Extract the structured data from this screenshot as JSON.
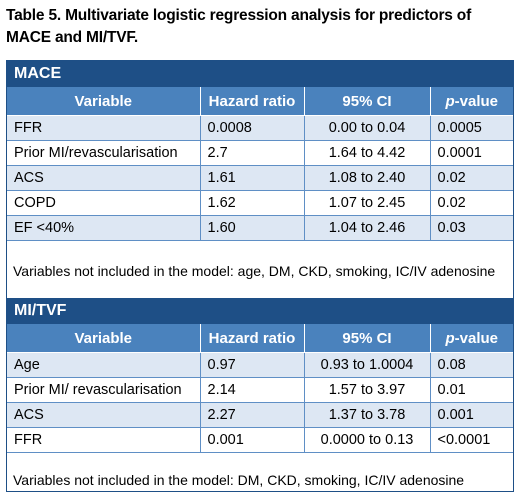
{
  "caption": "Table 5. Multivariate logistic regression analysis for predictors of MACE and MI/TVF.",
  "columns": {
    "variable": "Variable",
    "hazard_ratio": "Hazard ratio",
    "ci": "95% CI",
    "p_prefix": "p",
    "p_suffix": "-value"
  },
  "mace": {
    "title": "MACE",
    "rows": [
      {
        "variable": "FFR",
        "hr": "0.0008",
        "ci": "0.00 to 0.04",
        "p": "0.0005"
      },
      {
        "variable": "Prior MI/revascularisation",
        "hr": "2.7",
        "ci": "1.64 to 4.42",
        "p": "0.0001"
      },
      {
        "variable": "ACS",
        "hr": "1.61",
        "ci": "1.08 to 2.40",
        "p": "0.02"
      },
      {
        "variable": "COPD",
        "hr": "1.62",
        "ci": "1.07 to 2.45",
        "p": "0.02"
      },
      {
        "variable": "EF <40%",
        "hr": "1.60",
        "ci": "1.04 to 2.46",
        "p": "0.03"
      }
    ],
    "note": "Variables not included in the model: age, DM, CKD, smoking, IC/IV adenosine"
  },
  "mitvf": {
    "title": "MI/TVF",
    "rows": [
      {
        "variable": "Age",
        "hr": "0.97",
        "ci": "0.93 to 1.0004",
        "p": "0.08"
      },
      {
        "variable": "Prior MI/ revascularisation",
        "hr": "2.14",
        "ci": "1.57 to 3.97",
        "p": "0.01"
      },
      {
        "variable": "ACS",
        "hr": "2.27",
        "ci": "1.37 to 3.78",
        "p": "0.001"
      },
      {
        "variable": "FFR",
        "hr": "0.001",
        "ci": "0.0000 to 0.13",
        "p": "<0.0001"
      }
    ],
    "note": "Variables not included in the model: DM, CKD, smoking, IC/IV adenosine"
  },
  "colors": {
    "section_header": "#1e4f86",
    "column_header": "#4a82bd",
    "alt_row": "#dde7f3",
    "border": "#5f8fc5"
  }
}
